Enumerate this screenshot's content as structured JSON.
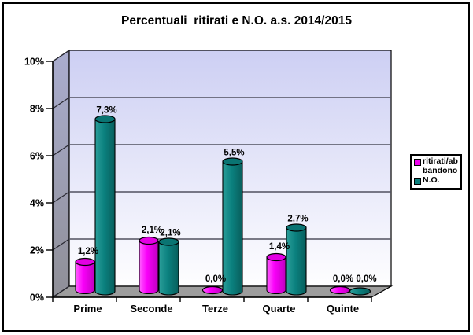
{
  "window": {
    "background": "#FFFFFF",
    "border_color": "#000000"
  },
  "title": "Percentuali  ritirati e N.O. a.s. 2014/2015",
  "legend": {
    "items": [
      {
        "swatch_color": "#EE00EE",
        "lines": [
          "ritirati/ab",
          "bandono"
        ]
      },
      {
        "swatch_color": "#0B7F7D",
        "lines": [
          "N.O."
        ]
      }
    ]
  },
  "chart_data": {
    "type": "bar",
    "subtype": "3d-cylinder",
    "title": "Percentuali ritirati e N.O. a.s. 2014/2015",
    "categories": [
      "Prime",
      "Seconde",
      "Terze",
      "Quarte",
      "Quinte"
    ],
    "series": [
      {
        "name": "ritirati/abbandono",
        "color": "#FF00FF",
        "values": [
          1.2,
          2.1,
          0.0,
          1.4,
          0.0
        ],
        "data_labels": [
          "1,2%",
          "2,1%",
          "0,0%",
          "1,4%",
          "0,0%"
        ]
      },
      {
        "name": "N.O.",
        "color": "#0B817F",
        "values": [
          7.3,
          2.1,
          5.5,
          2.7,
          0.0
        ],
        "data_labels": [
          "7,3%",
          "2,1%",
          "5,5%",
          "2,7%",
          "0,0%"
        ]
      }
    ],
    "xlabel": "",
    "ylabel": "",
    "ylim": [
      0,
      10
    ],
    "ytick_step": 2,
    "ytick_labels": [
      "0%",
      "2%",
      "4%",
      "6%",
      "8%",
      "10%"
    ],
    "grid": true,
    "legend_position": "middle-right",
    "colors": {
      "wall_top": "#CDCFF3",
      "wall_bottom": "#FEFEFF",
      "side_wall_top": "#AAADCF",
      "side_wall_bottom": "#8F8F97",
      "floor": "#9D9D9D",
      "grid_line": "#51515F",
      "axis_line": "#000000",
      "series1_body_light": "#FF62FF",
      "series1_body": "#FA00FA",
      "series1_body_dark": "#BF00BF",
      "series1_top": "#E300E3",
      "series2_body_light": "#2B9E99",
      "series2_body": "#0B817F",
      "series2_body_dark": "#085E5C",
      "series2_top": "#0A7472",
      "label_text": "#000000"
    }
  }
}
